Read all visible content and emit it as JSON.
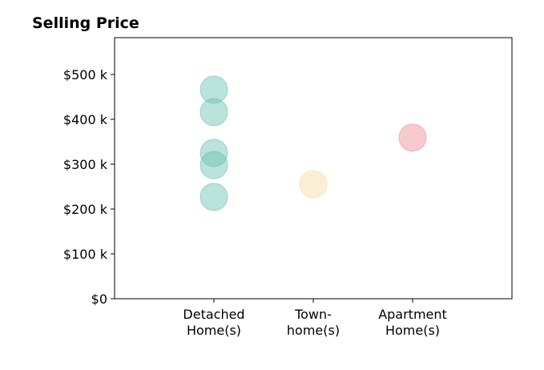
{
  "chart_data": {
    "type": "strip",
    "title": "Selling Price",
    "categories": [
      [
        "Detached",
        "Home(s)"
      ],
      [
        "Town-",
        "home(s)"
      ],
      [
        "Apartment",
        "Home(s)"
      ]
    ],
    "values": [
      [
        466000,
        416000,
        325000,
        298000,
        227000
      ],
      [
        255000
      ],
      [
        359000
      ]
    ],
    "colors": [
      "#66c2b0",
      "#f5d9a0",
      "#ee8a94"
    ],
    "ylim": [
      0,
      582000
    ],
    "yticks": [
      {
        "value": 0,
        "label": "$0"
      },
      {
        "value": 100000,
        "label": "$100 k"
      },
      {
        "value": 200000,
        "label": "$200 k"
      },
      {
        "value": 300000,
        "label": "$300 k"
      },
      {
        "value": 400000,
        "label": "$400 k"
      },
      {
        "value": 500000,
        "label": "$500 k"
      }
    ]
  }
}
